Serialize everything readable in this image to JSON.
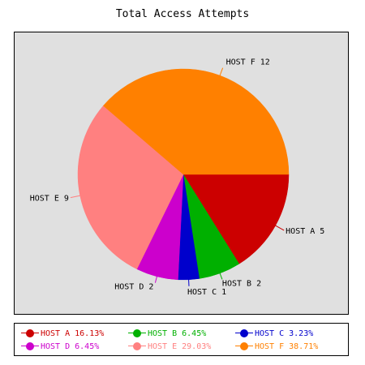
{
  "chart_data": {
    "type": "pie",
    "title": "Total Access Attempts",
    "slices": [
      {
        "name": "HOST A",
        "value": 5,
        "label": "HOST A 5",
        "percent_label": "16.13%",
        "color": "#cc0000"
      },
      {
        "name": "HOST B",
        "value": 2,
        "label": "HOST B 2",
        "percent_label": "6.45%",
        "color": "#00b000"
      },
      {
        "name": "HOST C",
        "value": 1,
        "label": "HOST C 1",
        "percent_label": "3.23%",
        "color": "#0000cc"
      },
      {
        "name": "HOST D",
        "value": 2,
        "label": "HOST D 2",
        "percent_label": "6.45%",
        "color": "#cc00cc"
      },
      {
        "name": "HOST E",
        "value": 9,
        "label": "HOST E 9",
        "percent_label": "29.03%",
        "color": "#ff8080"
      },
      {
        "name": "HOST F",
        "value": 12,
        "label": "HOST F 12",
        "percent_label": "38.71%",
        "color": "#ff8000"
      }
    ],
    "legend_position": "bottom",
    "legend_entries": [
      "HOST A 16.13%",
      "HOST B 6.45%",
      "HOST C 3.23%",
      "HOST D 6.45%",
      "HOST E 29.03%",
      "HOST F 38.71%"
    ],
    "background_color": "#e0e0e0"
  }
}
